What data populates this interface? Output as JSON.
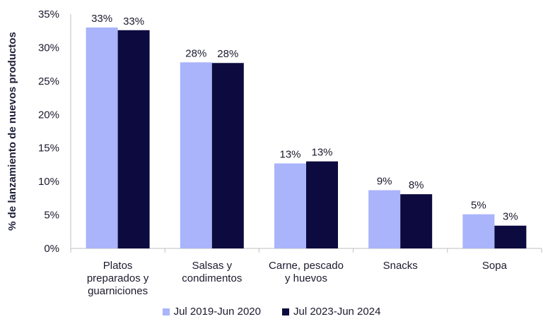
{
  "chart_data": {
    "type": "bar",
    "ylabel": "% de lanzamiento de nuevos productos",
    "ylim": [
      0,
      35
    ],
    "yticks": [
      "0%",
      "5%",
      "10%",
      "15%",
      "20%",
      "25%",
      "30%",
      "35%"
    ],
    "categories": [
      [
        "Platos",
        "preparados y",
        "guarniciones"
      ],
      [
        "Salsas y",
        "condimentos"
      ],
      [
        "Carne, pescado",
        "y huevos"
      ],
      [
        "Snacks"
      ],
      [
        "Sopa"
      ]
    ],
    "series": [
      {
        "name": "Jul 2019-Jun 2020",
        "color": "#a9b4fb",
        "values": [
          33,
          27.8,
          12.7,
          8.7,
          5.1
        ],
        "labels": [
          "33%",
          "28%",
          "13%",
          "9%",
          "5%"
        ]
      },
      {
        "name": "Jul 2023-Jun 2024",
        "color": "#0c0a3e",
        "values": [
          32.6,
          27.7,
          13.0,
          8.1,
          3.4
        ],
        "labels": [
          "33%",
          "28%",
          "13%",
          "8%",
          "3%"
        ]
      }
    ],
    "grid": false,
    "legend": "bottom"
  }
}
